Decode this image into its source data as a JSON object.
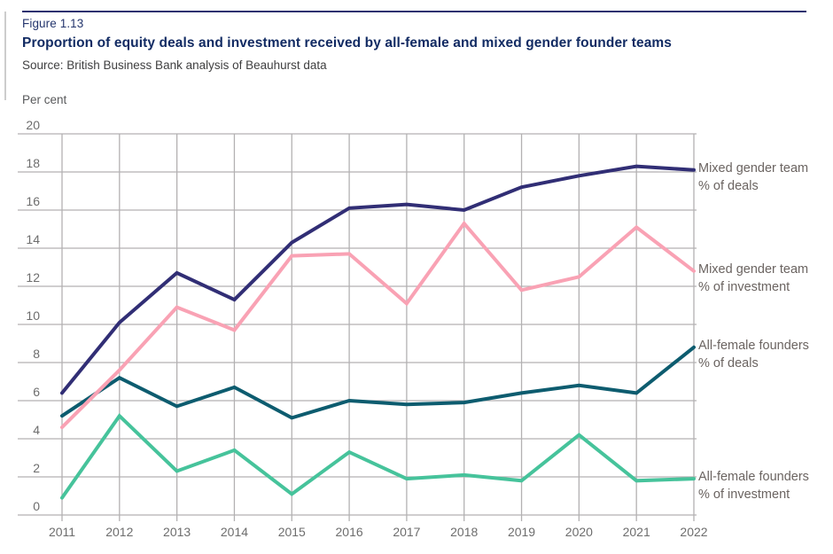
{
  "figure": {
    "label": "Figure 1.13",
    "title": "Proportion of equity deals and investment received by all-female and mixed gender founder teams",
    "source": "Source: British Business Bank analysis of Beauhurst data",
    "unit_label": "Per cent"
  },
  "colors": {
    "rule": "#2d3170",
    "figure_label_text": "#24356d",
    "title_text": "#122b63",
    "source_text": "#404041",
    "unit_text": "#58595b",
    "grid": "#b3b1b2",
    "axis_text": "#6d6d6d",
    "legend_text": "#6b6461"
  },
  "chart_data": {
    "type": "line",
    "x": [
      2011,
      2012,
      2013,
      2014,
      2015,
      2016,
      2017,
      2018,
      2019,
      2020,
      2021,
      2022
    ],
    "title": "Proportion of equity deals and investment received by all-female and mixed gender founder teams",
    "xlabel": "",
    "ylabel": "Per cent",
    "ylim": [
      0,
      20
    ],
    "ytick_step": 2,
    "grid": true,
    "legend_position": "right",
    "series": [
      {
        "key": "mixed-gender-deals",
        "name": "Mixed gender team % of deals",
        "legend_lines": [
          "Mixed gender team",
          "% of deals"
        ],
        "color": "#312e75",
        "values": [
          6.4,
          10.1,
          12.7,
          11.3,
          14.3,
          16.1,
          16.3,
          16.0,
          17.2,
          17.8,
          18.3,
          18.1
        ]
      },
      {
        "key": "mixed-gender-investment",
        "name": "Mixed gender team % of investment",
        "legend_lines": [
          "Mixed gender team",
          "% of investment"
        ],
        "color": "#f9a2b4",
        "values": [
          4.6,
          7.6,
          10.9,
          9.7,
          13.6,
          13.7,
          11.1,
          15.3,
          11.8,
          12.5,
          15.1,
          12.8
        ]
      },
      {
        "key": "all-female-deals",
        "name": "All-female founders % of deals",
        "legend_lines": [
          "All-female founders",
          "% of deals"
        ],
        "color": "#0d5c6f",
        "values": [
          5.2,
          7.2,
          5.7,
          6.7,
          5.1,
          6.0,
          5.8,
          5.9,
          6.4,
          6.8,
          6.4,
          8.8
        ]
      },
      {
        "key": "all-female-investment",
        "name": "All-female founders % of investment",
        "legend_lines": [
          "All-female founders",
          "% of investment"
        ],
        "color": "#46c39b",
        "values": [
          0.9,
          5.2,
          2.3,
          3.4,
          1.1,
          3.3,
          1.9,
          2.1,
          1.8,
          4.2,
          1.8,
          1.9
        ]
      }
    ]
  }
}
